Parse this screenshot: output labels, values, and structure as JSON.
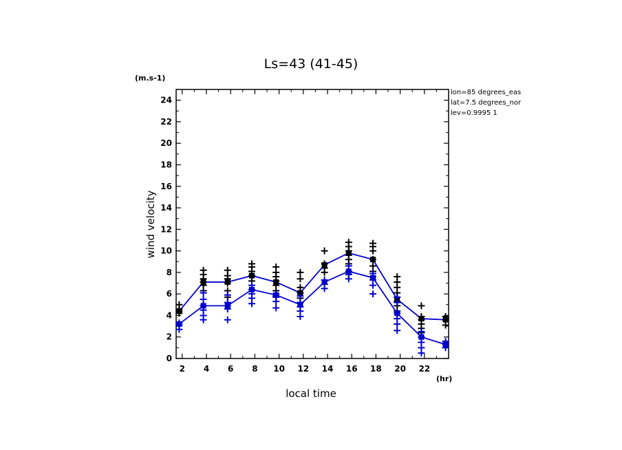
{
  "chart_data": {
    "type": "line",
    "title": "Ls=43 (41-45)",
    "ylabel": "wind velocity",
    "xlabel": "local time",
    "y_unit": "(m.s-1)",
    "x_unit": "(hr)",
    "info_lines": [
      "lon=85 degrees_eas",
      "lat=7.5 degrees_nor",
      "lev=0.9995 1"
    ],
    "xlim": [
      1.5,
      24
    ],
    "ylim": [
      0,
      25
    ],
    "x_ticks": [
      2,
      4,
      6,
      8,
      10,
      12,
      14,
      16,
      18,
      20,
      22
    ],
    "y_ticks": [
      0,
      2,
      4,
      6,
      8,
      10,
      12,
      14,
      16,
      18,
      20,
      22,
      24
    ],
    "grid": false,
    "series": [
      {
        "color": "#000000",
        "x": [
          1.75,
          3.75,
          5.75,
          7.75,
          9.75,
          11.75,
          13.75,
          15.75,
          17.75,
          19.75,
          21.75,
          23.75
        ],
        "values": [
          4.4,
          7.1,
          7.1,
          7.7,
          7.1,
          6.1,
          8.7,
          9.8,
          9.2,
          5.5,
          3.7,
          3.6
        ],
        "samples": [
          [
            4.2,
            4.4,
            4.6,
            5.0
          ],
          [
            6.3,
            6.8,
            7.1,
            7.4,
            7.8,
            8.2
          ],
          [
            5.7,
            6.3,
            7.0,
            7.4,
            7.7,
            8.2
          ],
          [
            6.4,
            7.2,
            7.7,
            8.1,
            8.5,
            8.8
          ],
          [
            5.8,
            6.3,
            6.8,
            7.2,
            7.6,
            8.0,
            8.5
          ],
          [
            5.2,
            5.6,
            6.1,
            6.6,
            7.4,
            8.0
          ],
          [
            8.0,
            8.4,
            8.8,
            10.0
          ],
          [
            8.8,
            9.2,
            9.6,
            10.0,
            10.4,
            10.8
          ],
          [
            7.6,
            8.1,
            8.6,
            9.2,
            10.0,
            10.4,
            10.7
          ],
          [
            4.4,
            4.9,
            5.3,
            5.7,
            6.1,
            6.6,
            7.1,
            7.6
          ],
          [
            2.4,
            2.8,
            3.2,
            3.6,
            3.9,
            4.9
          ],
          [
            3.1,
            3.6,
            3.9
          ]
        ]
      },
      {
        "color": "#0000cc",
        "x": [
          1.75,
          3.75,
          5.75,
          7.75,
          9.75,
          11.75,
          13.75,
          15.75,
          17.75,
          19.75,
          21.75,
          23.75
        ],
        "values": [
          3.2,
          4.9,
          4.9,
          6.4,
          5.9,
          5.0,
          7.1,
          8.1,
          7.5,
          4.2,
          2.0,
          1.3
        ],
        "samples": [
          [
            2.7,
            3.1,
            3.3
          ],
          [
            3.6,
            4.0,
            4.5,
            4.9,
            5.5,
            6.1
          ],
          [
            3.6,
            4.6,
            4.9,
            5.2,
            5.9
          ],
          [
            5.1,
            5.6,
            6.0,
            6.4,
            6.8
          ],
          [
            4.7,
            5.3,
            5.7,
            6.0
          ],
          [
            3.9,
            4.4,
            4.8,
            5.2,
            5.8
          ],
          [
            6.5,
            6.9,
            7.3
          ],
          [
            7.4,
            7.8,
            8.1,
            8.6
          ],
          [
            6.0,
            6.8,
            7.3,
            7.9
          ],
          [
            2.6,
            3.2,
            3.7,
            4.2,
            5.2,
            5.7
          ],
          [
            0.5,
            1.0,
            1.5,
            2.0,
            2.5
          ],
          [
            1.0,
            1.3,
            1.6
          ]
        ]
      }
    ]
  }
}
